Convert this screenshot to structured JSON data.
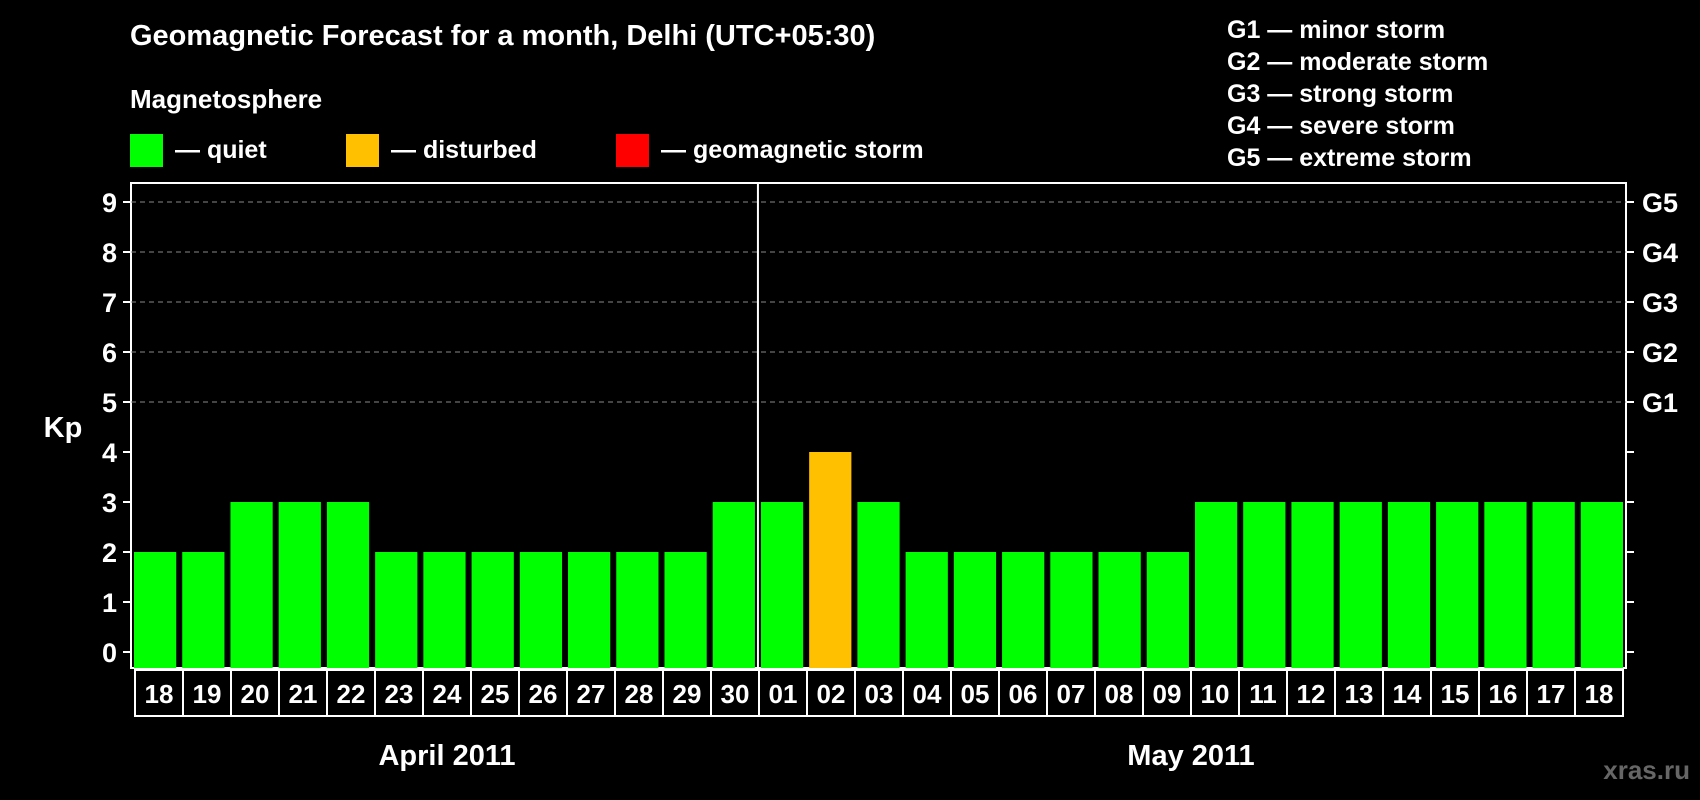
{
  "header": {
    "title": "Geomagnetic Forecast for a month, Delhi (UTC+05:30)",
    "subtitle": "Magnetosphere"
  },
  "legend": [
    {
      "label": "— quiet",
      "color": "#00ff00"
    },
    {
      "label": "— disturbed",
      "color": "#ffc000"
    },
    {
      "label": "— geomagnetic storm",
      "color": "#ff0000"
    }
  ],
  "storm_levels": [
    "G1 — minor storm",
    "G2 — moderate storm",
    "G3 — strong storm",
    "G4 — severe storm",
    "G5 — extreme storm"
  ],
  "watermark": "xras.ru",
  "chart_data": {
    "type": "bar",
    "ylabel": "Kp",
    "ylim": [
      0,
      9
    ],
    "yticks": [
      0,
      1,
      2,
      3,
      4,
      5,
      6,
      7,
      8,
      9
    ],
    "right_axis": [
      {
        "value": 5,
        "label": "G1"
      },
      {
        "value": 6,
        "label": "G2"
      },
      {
        "value": 7,
        "label": "G3"
      },
      {
        "value": 8,
        "label": "G4"
      },
      {
        "value": 9,
        "label": "G5"
      }
    ],
    "grid": "dashed horizontal at 5-9",
    "categories": [
      "18",
      "19",
      "20",
      "21",
      "22",
      "23",
      "24",
      "25",
      "26",
      "27",
      "28",
      "29",
      "30",
      "01",
      "02",
      "03",
      "04",
      "05",
      "06",
      "07",
      "08",
      "09",
      "10",
      "11",
      "12",
      "13",
      "14",
      "15",
      "16",
      "17",
      "18"
    ],
    "values": [
      2,
      2,
      3,
      3,
      3,
      2,
      2,
      2,
      2,
      2,
      2,
      2,
      3,
      3,
      4,
      3,
      2,
      2,
      2,
      2,
      2,
      2,
      3,
      3,
      3,
      3,
      3,
      3,
      3,
      3,
      3
    ],
    "colors": {
      "quiet": "#00ff00",
      "disturbed": "#ffc000",
      "storm": "#ff0000"
    },
    "months": [
      {
        "label": "April 2011",
        "start": 0,
        "end": 12
      },
      {
        "label": "May 2011",
        "start": 13,
        "end": 30
      }
    ]
  }
}
